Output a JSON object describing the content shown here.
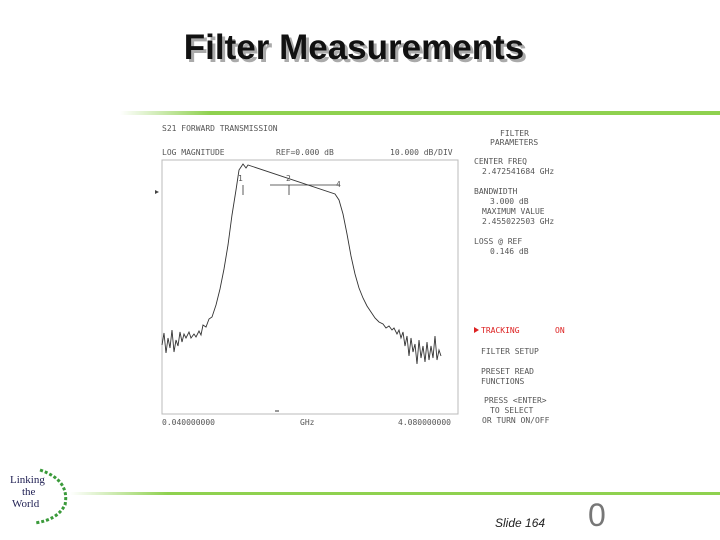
{
  "slide": {
    "title": "Filter Measurements",
    "slide_number": "Slide 164",
    "page_mark": "0",
    "logo": [
      "Linking",
      "the",
      "World"
    ]
  },
  "screen": {
    "header": "S21 FORWARD TRANSMISSION",
    "format": "LOG MAGNITUDE",
    "reference": "REF=0.000 dB",
    "scale": "10.000 dB/DIV",
    "start": "0.040000000",
    "unit": "GHz",
    "stop": "4.080000000",
    "markers": [
      "1",
      "2",
      "4"
    ],
    "panel": [
      "FILTER",
      "PARAMETERS",
      "CENTER FREQ",
      "2.472541684 GHz",
      "BANDWIDTH",
      "3.000 dB",
      "MAXIMUM VALUE",
      "2.455022503 GHz",
      "LOSS @ REF",
      "0.146 dB"
    ],
    "tracking": "TRACKING",
    "tracking_state": "ON",
    "menu": [
      "FILTER SETUP",
      "PRESET READ",
      "FUNCTIONS",
      "PRESS <ENTER>",
      "TO SELECT",
      "OR TURN ON/OFF"
    ]
  }
}
